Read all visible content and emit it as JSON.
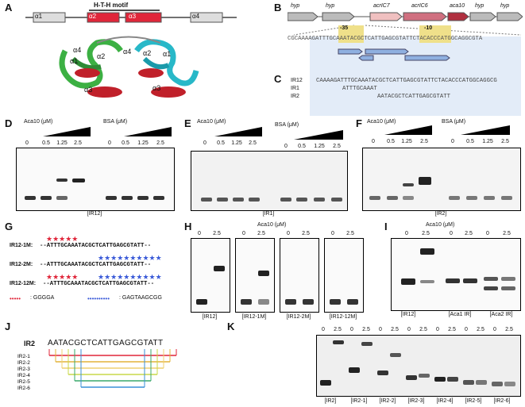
{
  "panels": {
    "A": "A",
    "B": "B",
    "C": "C",
    "D": "D",
    "E": "E",
    "F": "F",
    "G": "G",
    "H": "H",
    "I": "I",
    "J": "J",
    "K": "K"
  },
  "a": {
    "motif": "H-T-H motif",
    "helices": [
      "α1",
      "α2",
      "α3",
      "α4"
    ],
    "struct_labels": [
      "α4",
      "α2",
      "α1",
      "α3",
      "α4",
      "α2",
      "α1",
      "α3"
    ]
  },
  "b": {
    "genes": [
      "hyp",
      "hyp",
      "acrIC7",
      "acrIC6",
      "aca10",
      "hyp",
      "hyp"
    ],
    "box35": "-35",
    "box10": "-10",
    "promoter_seq": "CGCAAAAGATTTGCAAATACGCTCATTGAGCGTATTCTACACCCATGGCAGGCGTA"
  },
  "c": {
    "rows": [
      {
        "name": "IR12",
        "seq": "CAAAAGATTTGCAAATACGCTCATTGAGCGTATTCTACACCCATGGCAGGCG"
      },
      {
        "name": "IR1",
        "seq": "ATTTGCAAAT"
      },
      {
        "name": "IR2",
        "seq": "AATACGCTCATTGAGCGTATT"
      }
    ]
  },
  "gels_top": {
    "aca10_label": "Aca10 (μM)",
    "bsa_label": "BSA (μM)",
    "concentrations": [
      "0",
      "0.5",
      "1.25",
      "2.5"
    ],
    "d_caption": "[IR12]",
    "e_caption": "[IR1]",
    "f_caption": "[IR2]"
  },
  "g": {
    "rows": [
      {
        "name": "IR12-1M:",
        "seq": "--ATTTGCAAATACGCTCATTGAGCGTATT--"
      },
      {
        "name": "IR12-2M:",
        "seq": "--ATTTGCAAATACGCTCATTGAGCGTATT--"
      },
      {
        "name": "IR12-12M:",
        "seq": "--ATTTGCAAATACGCTCATTGAGCGTATT--"
      }
    ],
    "legend_red": ": GGGGA",
    "legend_blue": ": GAGTAAGCGG"
  },
  "h": {
    "title": "Aca10 (μM)",
    "conc": [
      "0",
      "2.5"
    ],
    "captions": [
      "[IR12]",
      "[IR12-1M]",
      "[IR12-2M]",
      "[IR12-12M]"
    ]
  },
  "i": {
    "title": "Aca10 (μM)",
    "conc": [
      "0",
      "2.5",
      "0",
      "2.5",
      "0",
      "2.5"
    ],
    "captions": [
      "[IR12]",
      "[Aca1 IR]",
      "[Aca2 IR]"
    ]
  },
  "j": {
    "title": "IR2",
    "seq": "AATACGCTCATTGAGCGTATT",
    "labels": [
      "IR2-1",
      "IR2-2",
      "IR2-3",
      "IR2-4",
      "IR2-5",
      "IR2-6"
    ],
    "colors": [
      "#e0263a",
      "#e3b43a",
      "#f0d070",
      "#c9d84a",
      "#3aa86b",
      "#3a8fd8"
    ]
  },
  "k": {
    "conc": [
      "0",
      "2.5",
      "0",
      "2.5",
      "0",
      "2.5",
      "0",
      "2.5",
      "0",
      "2.5",
      "0",
      "2.5",
      "0",
      "2.5"
    ],
    "captions": [
      "[IR2]",
      "[IR2-1]",
      "[IR2-2]",
      "[IR2-3]",
      "[IR2-4]",
      "[IR2-5]",
      "[IR2-6]"
    ]
  }
}
